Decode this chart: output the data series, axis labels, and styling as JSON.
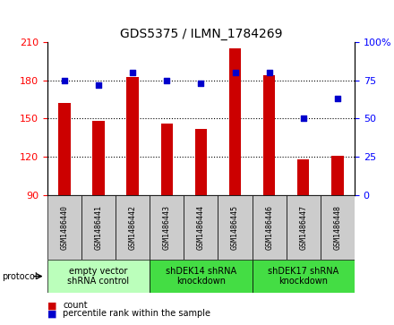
{
  "title": "GDS5375 / ILMN_1784269",
  "samples": [
    "GSM1486440",
    "GSM1486441",
    "GSM1486442",
    "GSM1486443",
    "GSM1486444",
    "GSM1486445",
    "GSM1486446",
    "GSM1486447",
    "GSM1486448"
  ],
  "counts": [
    162,
    148,
    183,
    146,
    142,
    205,
    184,
    118,
    121
  ],
  "percentiles": [
    75,
    72,
    80,
    75,
    73,
    80,
    80,
    50,
    63
  ],
  "ylim_left": [
    90,
    210
  ],
  "ylim_right": [
    0,
    100
  ],
  "yticks_left": [
    90,
    120,
    150,
    180,
    210
  ],
  "yticks_right": [
    0,
    25,
    50,
    75,
    100
  ],
  "bar_color": "#cc0000",
  "dot_color": "#0000cc",
  "bar_bottom": 90,
  "bar_width": 0.35,
  "groups": [
    {
      "label": "empty vector\nshRNA control",
      "start": 0,
      "end": 3,
      "color": "#bbffbb"
    },
    {
      "label": "shDEK14 shRNA\nknockdown",
      "start": 3,
      "end": 6,
      "color": "#44dd44"
    },
    {
      "label": "shDEK17 shRNA\nknockdown",
      "start": 6,
      "end": 9,
      "color": "#44dd44"
    }
  ],
  "sample_box_color": "#cccccc",
  "protocol_label": "protocol",
  "legend_count_label": "count",
  "legend_percentile_label": "percentile rank within the sample",
  "grid_yticks": [
    120,
    150,
    180
  ],
  "title_fontsize": 10,
  "tick_fontsize": 8,
  "sample_fontsize": 6,
  "group_fontsize": 7
}
